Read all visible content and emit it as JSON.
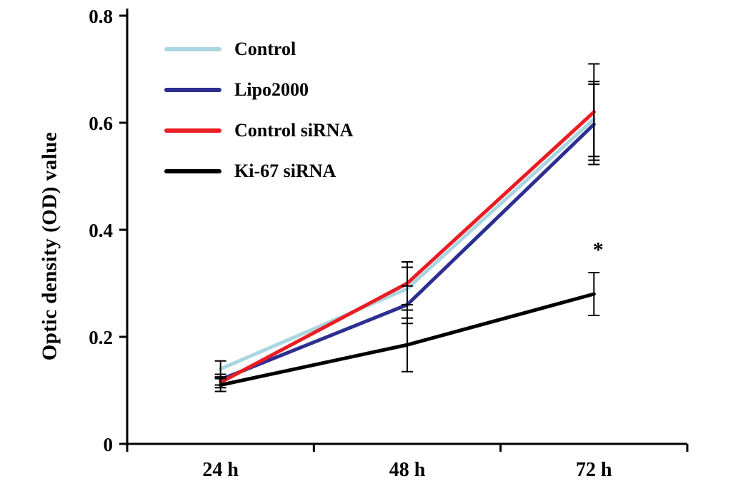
{
  "chart_data": {
    "type": "line",
    "title": "",
    "xlabel": "",
    "ylabel": "Optic density (OD) value",
    "categories": [
      "24 h",
      "48 h",
      "72 h"
    ],
    "yticks": [
      0,
      0.2,
      0.4,
      0.6,
      0.8
    ],
    "ytick_labels": [
      "0",
      "0.2",
      "0.4",
      "0.6",
      "0.8"
    ],
    "ylim": [
      0,
      0.8
    ],
    "grid": false,
    "legend_position": "top-left-inside",
    "error_bar_color": "#000000",
    "series": [
      {
        "name": "Control",
        "color": "#a9d6e0",
        "values": [
          0.14,
          0.29,
          0.607
        ],
        "errors": [
          0.015,
          0.04,
          0.07
        ]
      },
      {
        "name": "Lipo2000",
        "color": "#2c2f8f",
        "values": [
          0.12,
          0.26,
          0.597
        ],
        "errors": [
          0.01,
          0.035,
          0.075
        ]
      },
      {
        "name": "Control siRNA",
        "color": "#ea1c24",
        "values": [
          0.115,
          0.3,
          0.62
        ],
        "errors": [
          0.01,
          0.04,
          0.09
        ]
      },
      {
        "name": "Ki-67 siRNA",
        "color": "#000000",
        "values": [
          0.11,
          0.185,
          0.28
        ],
        "errors": [
          0.012,
          0.05,
          0.04
        ]
      }
    ],
    "annotations": [
      {
        "text": "*",
        "category_index": 2,
        "y": 0.35
      }
    ]
  }
}
